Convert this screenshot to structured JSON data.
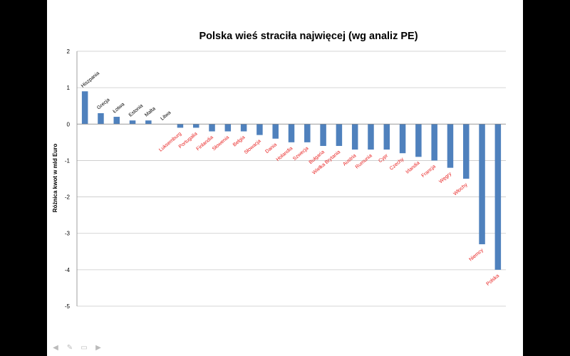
{
  "chart_data": {
    "type": "bar",
    "title": "Polska wieś straciła najwięcej (wg analiz PE)",
    "xlabel": "",
    "ylabel": "Różnica kwot w mld Euro",
    "ylim": [
      -5,
      2
    ],
    "yticks": [
      2,
      1,
      0,
      -1,
      -2,
      -3,
      -4,
      -5
    ],
    "grid": true,
    "legend": "none",
    "bar_color": "#4f81bd",
    "positive_label_color": "#000000",
    "negative_label_color": "#e8201f",
    "categories": [
      "Hiszpania",
      "Grecja",
      "Łotwa",
      "Estonia",
      "Malta",
      "Litwa",
      "Luksemburg",
      "Portugalia",
      "Finlandia",
      "Słowenia",
      "Belgia",
      "Słowacja",
      "Dania",
      "Holandia",
      "Szwecja",
      "Bułgaria",
      "Wielka Brytania",
      "Austria",
      "Rumunia",
      "Cypr",
      "Czechy",
      "Irlandia",
      "Francja",
      "Węgry",
      "Włochy",
      "Niemcy",
      "Polska"
    ],
    "values": [
      0.9,
      0.3,
      0.2,
      0.1,
      0.1,
      0.0,
      -0.1,
      -0.1,
      -0.2,
      -0.2,
      -0.2,
      -0.3,
      -0.4,
      -0.5,
      -0.5,
      -0.6,
      -0.6,
      -0.7,
      -0.7,
      -0.7,
      -0.8,
      -0.9,
      -1.0,
      -1.2,
      -1.5,
      -3.3,
      -4.0
    ]
  },
  "slide_controls": [
    "prev-icon",
    "pen-icon",
    "menu-icon",
    "next-icon"
  ]
}
